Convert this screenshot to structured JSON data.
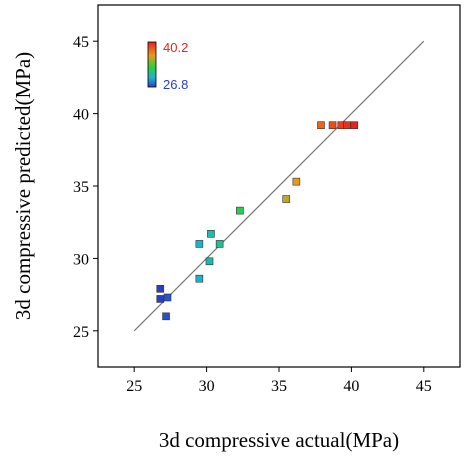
{
  "chart_data": {
    "type": "scatter",
    "xlabel": "3d compressive actual(MPa)",
    "ylabel": "3d compressive predicted(MPa)",
    "xlim": [
      22.5,
      47.5
    ],
    "ylim": [
      22.5,
      47.5
    ],
    "xticks": [
      25,
      30,
      35,
      40,
      45
    ],
    "yticks": [
      25,
      30,
      35,
      40,
      45
    ],
    "grid": false,
    "reference_line": {
      "from": [
        25,
        25
      ],
      "to": [
        45,
        45
      ]
    },
    "colorbar": {
      "max_label": "40.2",
      "min_label": "26.8",
      "max": 40.2,
      "min": 26.8,
      "max_color": "#e8231f",
      "min_color": "#2a3fc7",
      "placement": "top-left"
    },
    "points": [
      {
        "x": 26.8,
        "y": 27.9
      },
      {
        "x": 26.8,
        "y": 27.2
      },
      {
        "x": 27.3,
        "y": 27.3
      },
      {
        "x": 27.2,
        "y": 26.0
      },
      {
        "x": 29.5,
        "y": 28.6
      },
      {
        "x": 29.5,
        "y": 31.0
      },
      {
        "x": 30.2,
        "y": 29.8
      },
      {
        "x": 30.3,
        "y": 31.7
      },
      {
        "x": 30.9,
        "y": 31.0
      },
      {
        "x": 32.3,
        "y": 33.3
      },
      {
        "x": 35.5,
        "y": 34.1
      },
      {
        "x": 36.2,
        "y": 35.3
      },
      {
        "x": 37.9,
        "y": 39.2
      },
      {
        "x": 38.7,
        "y": 39.2
      },
      {
        "x": 39.3,
        "y": 39.2
      },
      {
        "x": 39.7,
        "y": 39.2
      },
      {
        "x": 40.2,
        "y": 39.2
      }
    ]
  }
}
